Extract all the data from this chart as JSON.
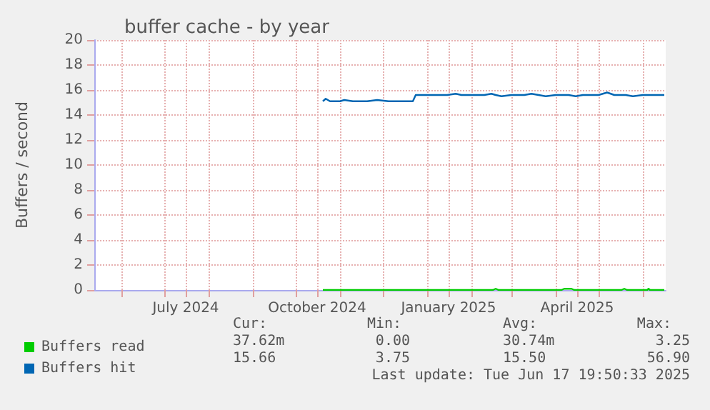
{
  "chart_data": {
    "type": "line",
    "title": "buffer cache - by year",
    "ylabel": "Buffers / second",
    "xlim": [
      "2024-05-13",
      "2025-06-17"
    ],
    "xticks": [
      {
        "value": "2024-06-01",
        "label": null
      },
      {
        "value": "2024-07-01",
        "label": null
      },
      {
        "value": "2024-07-16",
        "label": "July 2024"
      },
      {
        "value": "2024-08-01",
        "label": null
      },
      {
        "value": "2024-09-01",
        "label": null
      },
      {
        "value": "2024-10-01",
        "label": null
      },
      {
        "value": "2024-10-16",
        "label": "October 2024"
      },
      {
        "value": "2024-11-01",
        "label": null
      },
      {
        "value": "2024-12-01",
        "label": null
      },
      {
        "value": "2025-01-01",
        "label": null
      },
      {
        "value": "2025-01-16",
        "label": "January 2025"
      },
      {
        "value": "2025-02-01",
        "label": null
      },
      {
        "value": "2025-03-01",
        "label": null
      },
      {
        "value": "2025-04-01",
        "label": null
      },
      {
        "value": "2025-04-16",
        "label": "April 2025"
      },
      {
        "value": "2025-05-01",
        "label": null
      },
      {
        "value": "2025-06-01",
        "label": null
      }
    ],
    "ylim": [
      0,
      20
    ],
    "yticks": [
      0,
      2,
      4,
      6,
      8,
      10,
      12,
      14,
      16,
      18,
      20
    ],
    "grid": true,
    "legend": "bottom left",
    "marker": "none",
    "line_style": "solid",
    "series": [
      {
        "name": "Buffers read",
        "color": "#00cc00",
        "x": [
          "2024-10-20",
          "2025-02-16",
          "2025-02-18",
          "2025-02-20",
          "2025-04-05",
          "2025-04-07",
          "2025-04-12",
          "2025-04-14",
          "2025-05-17",
          "2025-05-19",
          "2025-05-21",
          "2025-06-04",
          "2025-06-05",
          "2025-06-06",
          "2025-06-16"
        ],
        "values": [
          0,
          0,
          0.1,
          0,
          0,
          0.1,
          0.1,
          0,
          0,
          0.1,
          0,
          0,
          0.1,
          0,
          0
        ]
      },
      {
        "name": "Buffers hit",
        "color": "#0066b3",
        "x": [
          "2024-10-20",
          "2024-10-22",
          "2024-10-25",
          "2024-11-01",
          "2024-11-04",
          "2024-11-10",
          "2024-11-20",
          "2024-11-27",
          "2024-12-05",
          "2024-12-22",
          "2024-12-24",
          "2025-01-15",
          "2025-01-21",
          "2025-01-25",
          "2025-02-10",
          "2025-02-15",
          "2025-02-18",
          "2025-02-22",
          "2025-03-01",
          "2025-03-10",
          "2025-03-15",
          "2025-03-20",
          "2025-03-25",
          "2025-04-01",
          "2025-04-10",
          "2025-04-15",
          "2025-04-20",
          "2025-05-01",
          "2025-05-07",
          "2025-05-12",
          "2025-05-20",
          "2025-05-25",
          "2025-06-01",
          "2025-06-10",
          "2025-06-16"
        ],
        "values": [
          15.1,
          15.3,
          15.1,
          15.1,
          15.2,
          15.1,
          15.1,
          15.2,
          15.1,
          15.1,
          15.6,
          15.6,
          15.7,
          15.6,
          15.6,
          15.7,
          15.6,
          15.5,
          15.6,
          15.6,
          15.7,
          15.6,
          15.5,
          15.6,
          15.6,
          15.5,
          15.6,
          15.6,
          15.8,
          15.6,
          15.6,
          15.5,
          15.6,
          15.6,
          15.6
        ]
      }
    ],
    "annotations": [
      "Cur:",
      "Min:",
      "Avg:",
      "Max:",
      "37.62m",
      "0.00",
      "30.74m",
      "3.25",
      "15.66",
      "3.75",
      "15.50",
      "56.90",
      "Last update: Tue Jun 17 19:50:33 2025"
    ]
  }
}
